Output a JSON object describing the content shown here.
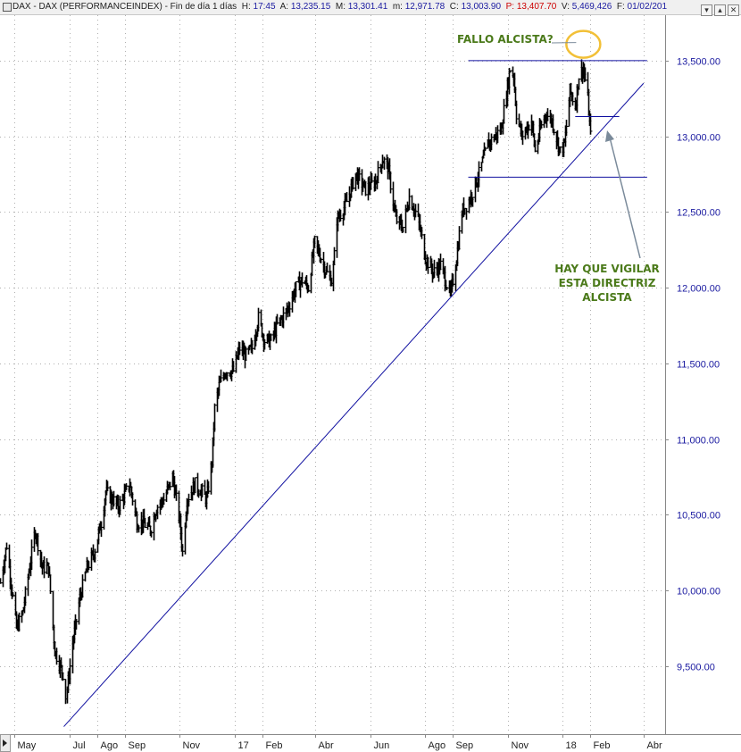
{
  "header": {
    "instrument": "DAX - DAX (PERFORMANCEINDEX)",
    "period": "- Fin de día 1 días",
    "h_label": "H:",
    "h_value": "17:45",
    "a_label": "A:",
    "a_value": "13,235.15",
    "m_upper_label": "M:",
    "m_upper_value": "13,301.41",
    "m_lower_label": "m:",
    "m_lower_value": "12,971.78",
    "c_label": "C:",
    "c_value": "13,003.90",
    "p_label": "P:",
    "p_value": "13,407.70",
    "v_label": "V:",
    "v_value": "5,469,426",
    "f_label": "F:",
    "f_value": "01/02/201",
    "window_buttons": [
      "▾",
      "▴",
      "✕"
    ]
  },
  "colors": {
    "price_bars": "#000000",
    "trendline": "#1010a0",
    "axis_text": "#1a1aa0",
    "annotation": "#4b7a1a",
    "highlight_circle": "#f2c037",
    "gridline": "#b0b0b0"
  },
  "annotations": {
    "fallo": "FALLO ALCISTA?",
    "vigilar_lines": [
      "HAY QUE VIGILAR",
      "ESTA DIRECTRIZ",
      "ALCISTA"
    ]
  },
  "chart_data": {
    "type": "bar",
    "subtype": "ohlc",
    "title": "DAX - DAX (PERFORMANCEINDEX)",
    "xlabel": "",
    "ylabel": "",
    "ylim": [
      9050,
      13800
    ],
    "y_ticks": [
      9500,
      10000,
      10500,
      11000,
      11500,
      12000,
      12500,
      13000,
      13500
    ],
    "y_tick_labels": [
      "9,500.00",
      "10,000.00",
      "10,500.00",
      "11,000.00",
      "11,500.00",
      "12,000.00",
      "12,500.00",
      "13,000.00",
      "13,500.00"
    ],
    "x_range": [
      "2016-04-15",
      "2018-04-25"
    ],
    "x_ticks": [
      {
        "date": "2016-05-01",
        "label": "May"
      },
      {
        "date": "2016-07-01",
        "label": "Jul"
      },
      {
        "date": "2016-08-01",
        "label": "Ago"
      },
      {
        "date": "2016-09-01",
        "label": "Sep"
      },
      {
        "date": "2016-11-01",
        "label": "Nov"
      },
      {
        "date": "2017-01-01",
        "label": "17"
      },
      {
        "date": "2017-02-01",
        "label": "Feb"
      },
      {
        "date": "2017-04-01",
        "label": "Abr"
      },
      {
        "date": "2017-06-01",
        "label": "Jun"
      },
      {
        "date": "2017-08-01",
        "label": "Ago"
      },
      {
        "date": "2017-09-01",
        "label": "Sep"
      },
      {
        "date": "2017-11-01",
        "label": "Nov"
      },
      {
        "date": "2018-01-01",
        "label": "18"
      },
      {
        "date": "2018-02-01",
        "label": "Feb"
      },
      {
        "date": "2018-04-01",
        "label": "Abr"
      }
    ],
    "grid": true,
    "legend": "none",
    "price_path": [
      [
        "2016-04-15",
        10050
      ],
      [
        "2016-04-22",
        10300
      ],
      [
        "2016-05-03",
        9750
      ],
      [
        "2016-05-10",
        9850
      ],
      [
        "2016-05-24",
        10400
      ],
      [
        "2016-06-01",
        10150
      ],
      [
        "2016-06-08",
        10150
      ],
      [
        "2016-06-15",
        9600
      ],
      [
        "2016-06-24",
        9450
      ],
      [
        "2016-06-27",
        9300
      ],
      [
        "2016-07-04",
        9650
      ],
      [
        "2016-07-12",
        9950
      ],
      [
        "2016-07-20",
        10150
      ],
      [
        "2016-07-28",
        10250
      ],
      [
        "2016-08-05",
        10450
      ],
      [
        "2016-08-10",
        10650
      ],
      [
        "2016-08-18",
        10600
      ],
      [
        "2016-08-24",
        10550
      ],
      [
        "2016-09-06",
        10700
      ],
      [
        "2016-09-14",
        10450
      ],
      [
        "2016-09-20",
        10450
      ],
      [
        "2016-09-29",
        10400
      ],
      [
        "2016-10-06",
        10550
      ],
      [
        "2016-10-14",
        10600
      ],
      [
        "2016-10-24",
        10750
      ],
      [
        "2016-11-01",
        10450
      ],
      [
        "2016-11-04",
        10250
      ],
      [
        "2016-11-09",
        10600
      ],
      [
        "2016-11-18",
        10700
      ],
      [
        "2016-11-25",
        10650
      ],
      [
        "2016-11-30",
        10600
      ],
      [
        "2016-12-06",
        10850
      ],
      [
        "2016-12-09",
        11200
      ],
      [
        "2016-12-14",
        11350
      ],
      [
        "2016-12-21",
        11450
      ],
      [
        "2016-12-30",
        11450
      ],
      [
        "2017-01-06",
        11600
      ],
      [
        "2017-01-13",
        11550
      ],
      [
        "2017-01-20",
        11600
      ],
      [
        "2017-01-27",
        11800
      ],
      [
        "2017-02-03",
        11650
      ],
      [
        "2017-02-10",
        11650
      ],
      [
        "2017-02-17",
        11750
      ],
      [
        "2017-02-28",
        11850
      ],
      [
        "2017-03-10",
        12000
      ],
      [
        "2017-03-17",
        12050
      ],
      [
        "2017-03-24",
        12000
      ],
      [
        "2017-03-31",
        12300
      ],
      [
        "2017-04-07",
        12200
      ],
      [
        "2017-04-13",
        12100
      ],
      [
        "2017-04-19",
        12050
      ],
      [
        "2017-04-24",
        12450
      ],
      [
        "2017-05-04",
        12550
      ],
      [
        "2017-05-15",
        12750
      ],
      [
        "2017-05-26",
        12650
      ],
      [
        "2017-06-06",
        12700
      ],
      [
        "2017-06-14",
        12850
      ],
      [
        "2017-06-20",
        12800
      ],
      [
        "2017-06-29",
        12450
      ],
      [
        "2017-07-07",
        12400
      ],
      [
        "2017-07-14",
        12600
      ],
      [
        "2017-07-24",
        12450
      ],
      [
        "2017-08-01",
        12200
      ],
      [
        "2017-08-10",
        12100
      ],
      [
        "2017-08-18",
        12150
      ],
      [
        "2017-08-29",
        11950
      ],
      [
        "2017-09-04",
        12150
      ],
      [
        "2017-09-11",
        12500
      ],
      [
        "2017-09-20",
        12600
      ],
      [
        "2017-09-29",
        12750
      ],
      [
        "2017-10-09",
        12950
      ],
      [
        "2017-10-17",
        13000
      ],
      [
        "2017-10-24",
        13050
      ],
      [
        "2017-11-03",
        13450
      ],
      [
        "2017-11-07",
        13400
      ],
      [
        "2017-11-10",
        13150
      ],
      [
        "2017-11-16",
        13000
      ],
      [
        "2017-11-21",
        13050
      ],
      [
        "2017-11-27",
        13100
      ],
      [
        "2017-12-01",
        12900
      ],
      [
        "2017-12-07",
        13050
      ],
      [
        "2017-12-13",
        13150
      ],
      [
        "2017-12-20",
        13100
      ],
      [
        "2017-12-29",
        12900
      ],
      [
        "2018-01-03",
        12950
      ],
      [
        "2018-01-09",
        13300
      ],
      [
        "2018-01-15",
        13200
      ],
      [
        "2018-01-19",
        13400
      ],
      [
        "2018-01-24",
        13450
      ],
      [
        "2018-01-29",
        13250
      ],
      [
        "2018-02-01",
        13000
      ]
    ],
    "trendline": {
      "start": [
        "2016-06-25",
        9100
      ],
      "end": [
        "2018-04-01",
        13350
      ]
    },
    "horizontal_lines": [
      {
        "value": 13500,
        "from": "2017-09-18",
        "to": "2018-04-05"
      },
      {
        "value": 13130,
        "from": "2018-01-15",
        "to": "2018-03-05"
      },
      {
        "value": 12730,
        "from": "2017-09-18",
        "to": "2018-04-05"
      }
    ]
  }
}
